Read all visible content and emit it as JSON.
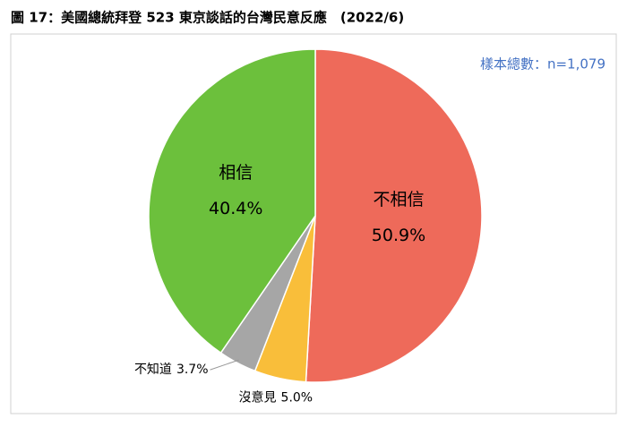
{
  "chart_data": {
    "type": "pie",
    "title": "圖 17：美國總統拜登 523 東京談話的台灣民意反應　(2022/6)",
    "annotation": "樣本總數：n=1,079",
    "categories": [
      "不相信",
      "沒意見",
      "不知道",
      "相信"
    ],
    "values": [
      50.9,
      5.0,
      3.7,
      40.4
    ],
    "value_labels": [
      "50.9%",
      "5.0%",
      "3.7%",
      "40.4%"
    ],
    "colors": [
      "#ee6a5a",
      "#f9be3a",
      "#a6a6a6",
      "#6cc03c"
    ]
  }
}
